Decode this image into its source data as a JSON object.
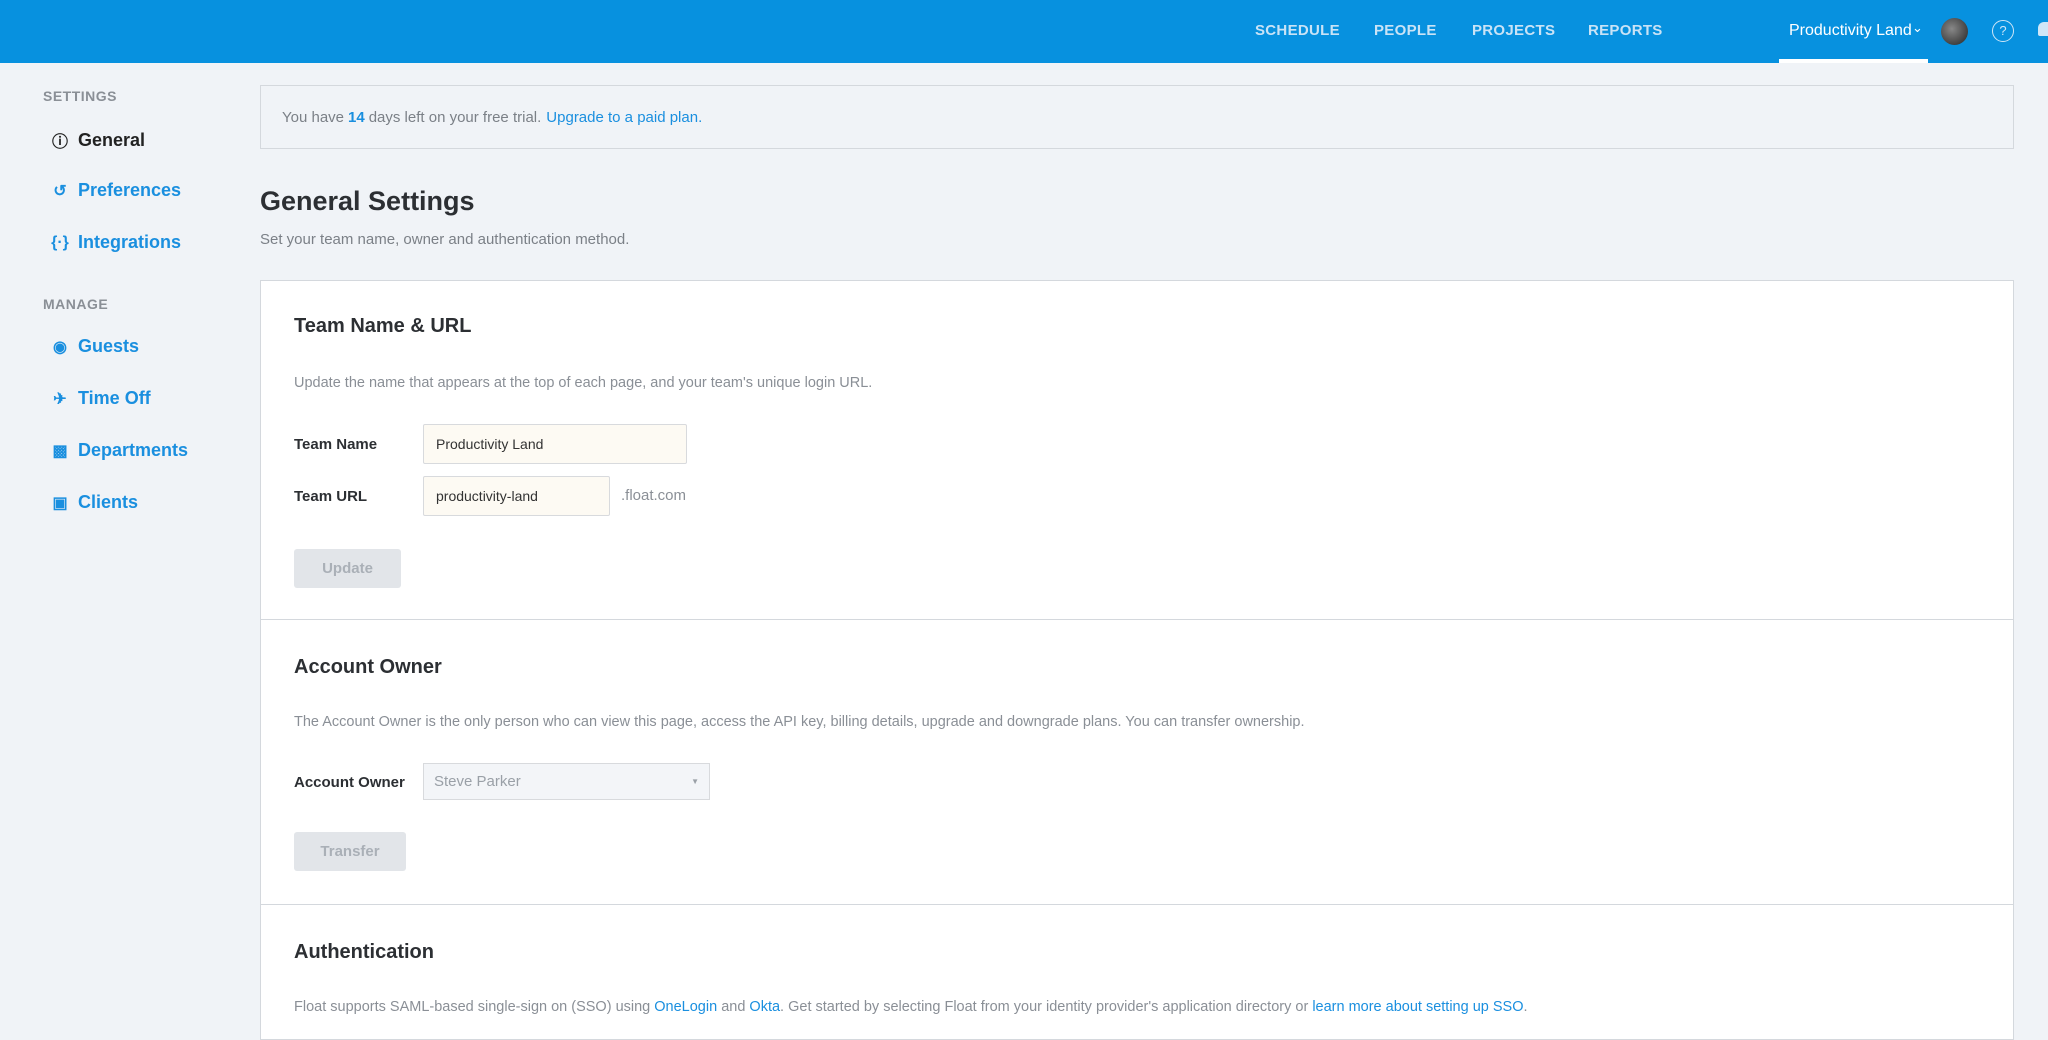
{
  "header": {
    "nav": [
      "SCHEDULE",
      "PEOPLE",
      "PROJECTS",
      "REPORTS"
    ],
    "team_menu": "Productivity Land",
    "brand_color": "#0791df"
  },
  "sidebar": {
    "settings_heading": "SETTINGS",
    "manage_heading": "MANAGE",
    "settings_items": [
      {
        "label": "General",
        "icon": "info-icon"
      },
      {
        "label": "Preferences",
        "icon": "history-icon"
      },
      {
        "label": "Integrations",
        "icon": "braces-icon"
      }
    ],
    "manage_items": [
      {
        "label": "Guests",
        "icon": "user-circle-icon"
      },
      {
        "label": "Time Off",
        "icon": "plane-icon"
      },
      {
        "label": "Departments",
        "icon": "sitemap-icon"
      },
      {
        "label": "Clients",
        "icon": "briefcase-icon"
      }
    ]
  },
  "banner": {
    "prefix": "You have",
    "days": "14",
    "suffix": "days left on your free trial.",
    "link": "Upgrade to a paid plan."
  },
  "page": {
    "title": "General Settings",
    "subtitle": "Set your team name, owner and authentication method."
  },
  "team": {
    "heading": "Team Name & URL",
    "description": "Update the name that appears at the top of each page, and your team's unique login URL.",
    "name_label": "Team Name",
    "name_value": "Productivity Land",
    "url_label": "Team URL",
    "url_value": "productivity-land",
    "url_suffix": ".float.com",
    "update_label": "Update"
  },
  "owner": {
    "heading": "Account Owner",
    "description": "The Account Owner is the only person who can view this page, access the API key, billing details, upgrade and downgrade plans. You can transfer ownership.",
    "label": "Account Owner",
    "value": "Steve Parker",
    "transfer_label": "Transfer"
  },
  "auth": {
    "heading": "Authentication",
    "d1": "Float supports SAML-based single-sign on (SSO) using",
    "onelogin": "OneLogin",
    "and": "and",
    "okta": "Okta",
    "d2": ". Get started by selecting Float from your identity provider's application directory or",
    "learn": "learn more about setting up SSO",
    "d3": "."
  }
}
